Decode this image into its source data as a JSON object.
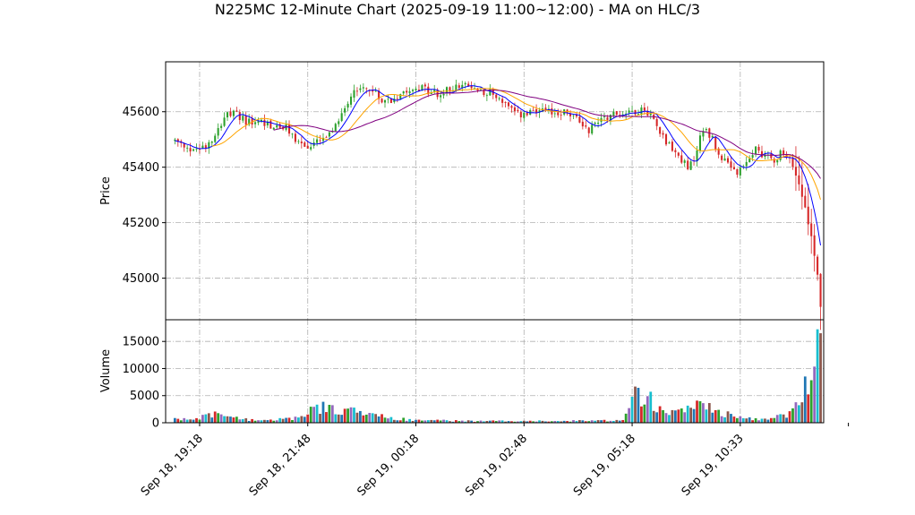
{
  "chart_data": {
    "type": "candlestick",
    "title": "N225MC 12-Minute Chart (2025-09-19 11:00~12:00) - MA on HLC/3",
    "price_panel": {
      "ylabel": "Price",
      "ylim": [
        44850,
        45780
      ],
      "yticks": [
        45000,
        45200,
        45400,
        45600
      ],
      "grid": true
    },
    "volume_panel": {
      "ylabel": "Volume",
      "ylim": [
        0,
        19000
      ],
      "yticks": [
        0,
        5000,
        10000,
        15000
      ],
      "grid": true
    },
    "x_index_range": [
      -3,
      210
    ],
    "xticks": [
      {
        "index": 8,
        "label": "Sep 18, 19:18"
      },
      {
        "index": 43,
        "label": "Sep 18, 21:48"
      },
      {
        "index": 78,
        "label": "Sep 19, 00:18"
      },
      {
        "index": 113,
        "label": "Sep 19, 02:48"
      },
      {
        "index": 148,
        "label": "Sep 19, 05:18"
      },
      {
        "index": 183,
        "label": "Sep 19, 10:33"
      },
      {
        "index": 218,
        "label": ""
      }
    ],
    "colors": {
      "up": "#2ca02c",
      "down": "#d62728",
      "ma_fast": "#0000ff",
      "ma_mid": "#ffa500",
      "ma_slow": "#800080"
    },
    "price_anchors": [
      [
        0,
        45495
      ],
      [
        4,
        45460
      ],
      [
        10,
        45480
      ],
      [
        13,
        45520
      ],
      [
        16,
        45585
      ],
      [
        20,
        45590
      ],
      [
        24,
        45560
      ],
      [
        28,
        45565
      ],
      [
        32,
        45545
      ],
      [
        36,
        45540
      ],
      [
        40,
        45490
      ],
      [
        43,
        45470
      ],
      [
        47,
        45495
      ],
      [
        51,
        45520
      ],
      [
        54,
        45600
      ],
      [
        58,
        45680
      ],
      [
        62,
        45690
      ],
      [
        66,
        45650
      ],
      [
        70,
        45640
      ],
      [
        74,
        45680
      ],
      [
        78,
        45690
      ],
      [
        82,
        45675
      ],
      [
        86,
        45660
      ],
      [
        90,
        45690
      ],
      [
        94,
        45690
      ],
      [
        98,
        45680
      ],
      [
        102,
        45670
      ],
      [
        106,
        45640
      ],
      [
        110,
        45590
      ],
      [
        114,
        45590
      ],
      [
        118,
        45600
      ],
      [
        122,
        45595
      ],
      [
        126,
        45600
      ],
      [
        130,
        45575
      ],
      [
        134,
        45535
      ],
      [
        138,
        45580
      ],
      [
        142,
        45590
      ],
      [
        146,
        45600
      ],
      [
        150,
        45605
      ],
      [
        153,
        45600
      ],
      [
        156,
        45560
      ],
      [
        158,
        45510
      ],
      [
        160,
        45480
      ],
      [
        162,
        45450
      ],
      [
        164,
        45430
      ],
      [
        166,
        45390
      ],
      [
        168,
        45430
      ],
      [
        170,
        45510
      ],
      [
        172,
        45540
      ],
      [
        174,
        45500
      ],
      [
        176,
        45450
      ],
      [
        178,
        45420
      ],
      [
        180,
        45390
      ],
      [
        182,
        45380
      ],
      [
        184,
        45390
      ],
      [
        186,
        45440
      ],
      [
        188,
        45465
      ],
      [
        190,
        45450
      ],
      [
        192,
        45440
      ],
      [
        194,
        45430
      ],
      [
        196,
        45450
      ],
      [
        198,
        45430
      ],
      [
        200,
        45410
      ],
      [
        202,
        45340
      ],
      [
        204,
        45270
      ],
      [
        205,
        45190
      ],
      [
        206,
        45150
      ],
      [
        207,
        45090
      ],
      [
        208,
        45020
      ],
      [
        209,
        44900
      ]
    ],
    "volume_anchors": [
      [
        0,
        600
      ],
      [
        8,
        700
      ],
      [
        10,
        2000
      ],
      [
        14,
        1500
      ],
      [
        18,
        900
      ],
      [
        24,
        600
      ],
      [
        30,
        500
      ],
      [
        36,
        700
      ],
      [
        42,
        1200
      ],
      [
        46,
        3000
      ],
      [
        50,
        2500
      ],
      [
        54,
        2500
      ],
      [
        58,
        2200
      ],
      [
        62,
        1500
      ],
      [
        66,
        1200
      ],
      [
        70,
        800
      ],
      [
        76,
        600
      ],
      [
        82,
        500
      ],
      [
        90,
        350
      ],
      [
        100,
        300
      ],
      [
        110,
        350
      ],
      [
        120,
        300
      ],
      [
        130,
        350
      ],
      [
        140,
        400
      ],
      [
        145,
        600
      ],
      [
        148,
        6000
      ],
      [
        152,
        5000
      ],
      [
        156,
        3500
      ],
      [
        160,
        2500
      ],
      [
        164,
        2500
      ],
      [
        168,
        3000
      ],
      [
        172,
        3500
      ],
      [
        176,
        2200
      ],
      [
        180,
        1200
      ],
      [
        186,
        800
      ],
      [
        192,
        600
      ],
      [
        198,
        1500
      ],
      [
        201,
        3000
      ],
      [
        203,
        5000
      ],
      [
        205,
        8000
      ],
      [
        207,
        9000
      ],
      [
        209,
        17500
      ]
    ],
    "ma_offsets": {
      "fast": 0,
      "mid": 12,
      "slow": 32
    }
  }
}
